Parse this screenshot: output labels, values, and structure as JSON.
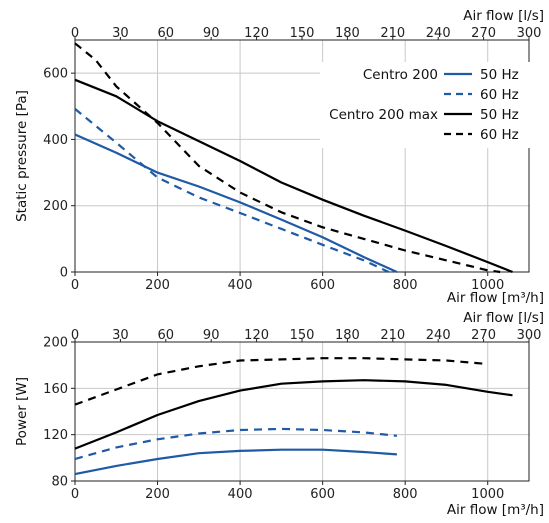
{
  "chart_data": [
    {
      "type": "line",
      "ylabel": "Static pressure [Pa]",
      "xlabel": "Air flow [m³/h]",
      "x2label": "Air flow [l/s]",
      "xlim": [
        0,
        1100
      ],
      "ylim": [
        0,
        700
      ],
      "x2lim": [
        0,
        300
      ],
      "xticks": [
        0,
        200,
        400,
        600,
        800,
        1000
      ],
      "yticks": [
        0,
        200,
        400,
        600
      ],
      "x2ticks": [
        0,
        30,
        60,
        90,
        120,
        150,
        180,
        210,
        240,
        270,
        300
      ],
      "grid": true,
      "legend": {
        "placement": "top-right",
        "entries": [
          {
            "product": "Centro 200",
            "speed": "50 Hz",
            "color": "#1f5aa6",
            "dash": "solid"
          },
          {
            "product": "",
            "speed": "60 Hz",
            "color": "#1f5aa6",
            "dash": "dashed"
          },
          {
            "product": "Centro 200 max",
            "speed": "50 Hz",
            "color": "#000000",
            "dash": "solid"
          },
          {
            "product": "",
            "speed": "60 Hz",
            "color": "#000000",
            "dash": "dashed"
          }
        ]
      },
      "series": [
        {
          "name": "Centro 200 50 Hz",
          "color": "#1f5aa6",
          "dash": "solid",
          "points": [
            [
              0,
              415
            ],
            [
              100,
              360
            ],
            [
              200,
              300
            ],
            [
              300,
              258
            ],
            [
              400,
              210
            ],
            [
              500,
              158
            ],
            [
              600,
              105
            ],
            [
              700,
              45
            ],
            [
              780,
              0
            ]
          ]
        },
        {
          "name": "Centro 200 60 Hz",
          "color": "#1f5aa6",
          "dash": "dashed",
          "points": [
            [
              0,
              492
            ],
            [
              100,
              390
            ],
            [
              200,
              285
            ],
            [
              300,
              225
            ],
            [
              400,
              178
            ],
            [
              500,
              130
            ],
            [
              600,
              82
            ],
            [
              700,
              35
            ],
            [
              760,
              0
            ]
          ]
        },
        {
          "name": "Centro 200 max 50 Hz",
          "color": "#000000",
          "dash": "solid",
          "points": [
            [
              0,
              580
            ],
            [
              100,
              530
            ],
            [
              200,
              455
            ],
            [
              300,
              395
            ],
            [
              400,
              335
            ],
            [
              500,
              270
            ],
            [
              600,
              218
            ],
            [
              700,
              170
            ],
            [
              800,
              125
            ],
            [
              900,
              78
            ],
            [
              1000,
              30
            ],
            [
              1060,
              0
            ]
          ]
        },
        {
          "name": "Centro 200 max 60 Hz",
          "color": "#000000",
          "dash": "dashed",
          "points": [
            [
              0,
              690
            ],
            [
              50,
              640
            ],
            [
              100,
              560
            ],
            [
              200,
              450
            ],
            [
              300,
              320
            ],
            [
              400,
              240
            ],
            [
              500,
              180
            ],
            [
              600,
              135
            ],
            [
              700,
              100
            ],
            [
              800,
              65
            ],
            [
              900,
              35
            ],
            [
              1000,
              5
            ],
            [
              1030,
              0
            ]
          ]
        }
      ]
    },
    {
      "type": "line",
      "ylabel": "Power [W]",
      "xlabel": "Air flow [m³/h]",
      "x2label": "Air flow [l/s]",
      "xlim": [
        0,
        1100
      ],
      "ylim": [
        80,
        200
      ],
      "x2lim": [
        0,
        300
      ],
      "xticks": [
        0,
        200,
        400,
        600,
        800,
        1000
      ],
      "yticks": [
        80,
        120,
        160,
        200
      ],
      "x2ticks": [
        0,
        30,
        60,
        90,
        120,
        150,
        180,
        210,
        240,
        270,
        300
      ],
      "grid": true,
      "series": [
        {
          "name": "Centro 200 50 Hz",
          "color": "#1f5aa6",
          "dash": "solid",
          "points": [
            [
              0,
              86
            ],
            [
              100,
              93
            ],
            [
              200,
              99
            ],
            [
              300,
              104
            ],
            [
              400,
              106
            ],
            [
              500,
              107
            ],
            [
              600,
              107
            ],
            [
              700,
              105
            ],
            [
              780,
              103
            ]
          ]
        },
        {
          "name": "Centro 200 60 Hz",
          "color": "#1f5aa6",
          "dash": "dashed",
          "points": [
            [
              0,
              99
            ],
            [
              100,
              109
            ],
            [
              200,
              116
            ],
            [
              300,
              121
            ],
            [
              400,
              124
            ],
            [
              500,
              125
            ],
            [
              600,
              124
            ],
            [
              700,
              122
            ],
            [
              780,
              119
            ]
          ]
        },
        {
          "name": "Centro 200 max 50 Hz",
          "color": "#000000",
          "dash": "solid",
          "points": [
            [
              0,
              108
            ],
            [
              100,
              122
            ],
            [
              200,
              137
            ],
            [
              300,
              149
            ],
            [
              400,
              158
            ],
            [
              500,
              164
            ],
            [
              600,
              166
            ],
            [
              700,
              167
            ],
            [
              800,
              166
            ],
            [
              900,
              163
            ],
            [
              1000,
              157
            ],
            [
              1060,
              154
            ]
          ]
        },
        {
          "name": "Centro 200 max 60 Hz",
          "color": "#000000",
          "dash": "dashed",
          "points": [
            [
              0,
              146
            ],
            [
              100,
              159
            ],
            [
              200,
              172
            ],
            [
              300,
              179
            ],
            [
              400,
              184
            ],
            [
              500,
              185
            ],
            [
              600,
              186
            ],
            [
              700,
              186
            ],
            [
              800,
              185
            ],
            [
              900,
              184
            ],
            [
              1000,
              181
            ]
          ]
        }
      ]
    }
  ]
}
